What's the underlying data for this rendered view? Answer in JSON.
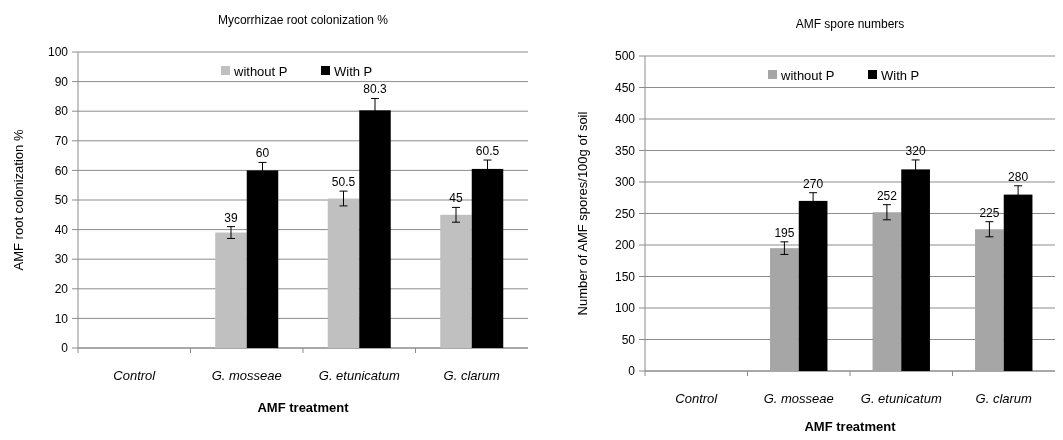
{
  "chart_data": [
    {
      "type": "bar",
      "title": "Mycorrhizae root colonization %",
      "xlabel": "AMF treatment",
      "ylabel": "AMF root colonization %",
      "categories": [
        "Control",
        "G. mosseae",
        "G. etunicatum",
        "G. clarum"
      ],
      "series": [
        {
          "name": "without P",
          "color": "#c0c0c0",
          "values": [
            null,
            39,
            50.5,
            45
          ],
          "errors": [
            null,
            2,
            2.5,
            2.5
          ]
        },
        {
          "name": "With P",
          "color": "#000000",
          "values": [
            null,
            60,
            80.3,
            60.5
          ],
          "errors": [
            null,
            2.7,
            4,
            3
          ]
        }
      ],
      "ylim": [
        0,
        100
      ],
      "yticks": [
        0,
        10,
        20,
        30,
        40,
        50,
        60,
        70,
        80,
        90,
        100
      ],
      "grid": "y",
      "legend": "top",
      "data_labels": true
    },
    {
      "type": "bar",
      "title": "AMF spore numbers",
      "xlabel": "AMF treatment",
      "ylabel": "Number of AMF spores/100g of soil",
      "categories": [
        "Control",
        "G. mosseae",
        "G. etunicatum",
        "G. clarum"
      ],
      "series": [
        {
          "name": "without P",
          "color": "#a6a6a6",
          "values": [
            null,
            195,
            252,
            225
          ],
          "errors": [
            null,
            10,
            12,
            12
          ]
        },
        {
          "name": "With P",
          "color": "#000000",
          "values": [
            null,
            270,
            320,
            280
          ],
          "errors": [
            null,
            13,
            15,
            14
          ]
        }
      ],
      "ylim": [
        0,
        500
      ],
      "yticks": [
        0,
        50,
        100,
        150,
        200,
        250,
        300,
        350,
        400,
        450,
        500
      ],
      "grid": "y",
      "legend": "top",
      "data_labels": true
    }
  ]
}
